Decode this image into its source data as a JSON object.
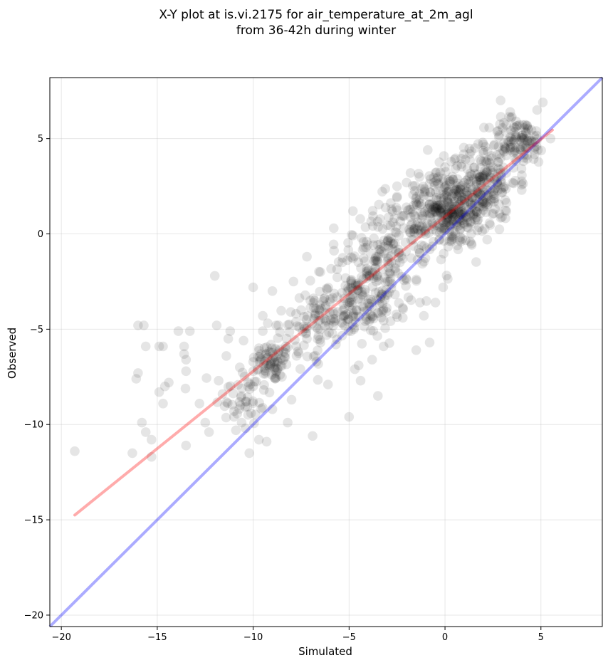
{
  "chart_data": {
    "type": "scatter",
    "title_line1": "X-Y plot at is.vi.2175 for air_temperature_at_2m_agl",
    "title_line2": "from 36-42h during winter",
    "xlabel": "Simulated",
    "ylabel": "Observed",
    "xlim": [
      -20.6,
      8.2
    ],
    "ylim": [
      -20.6,
      8.2
    ],
    "xticks": [
      -20,
      -15,
      -10,
      -5,
      0,
      5
    ],
    "yticks": [
      -20,
      -15,
      -10,
      -5,
      0,
      5
    ],
    "xtick_labels": [
      "−20",
      "−15",
      "−10",
      "−5",
      "0",
      "5"
    ],
    "ytick_labels": [
      "−20",
      "−15",
      "−10",
      "−5",
      "0",
      "5"
    ],
    "grid": true,
    "point_color": "#000000",
    "point_opacity": 0.1,
    "identity_line": {
      "color": "#0000ff",
      "opacity": 0.33,
      "from": [
        -20.6,
        -20.6
      ],
      "to": [
        8.2,
        8.2
      ]
    },
    "fit_line": {
      "color": "#ff0000",
      "opacity": 0.33,
      "from": [
        -19.3,
        -14.75
      ],
      "to": [
        5.6,
        5.45
      ]
    },
    "sparse_points": [
      [
        -19.3,
        -11.4
      ],
      [
        -16.3,
        -11.5
      ],
      [
        -16.0,
        -7.3
      ],
      [
        -16.1,
        -7.6
      ],
      [
        -16.0,
        -4.8
      ],
      [
        -15.7,
        -4.8
      ],
      [
        -15.6,
        -5.9
      ],
      [
        -15.8,
        -9.9
      ],
      [
        -15.6,
        -10.4
      ],
      [
        -15.3,
        -10.8
      ],
      [
        -15.3,
        -11.7
      ],
      [
        -14.9,
        -8.3
      ],
      [
        -14.7,
        -8.9
      ],
      [
        -14.6,
        -8.0
      ],
      [
        -14.7,
        -5.9
      ],
      [
        -14.9,
        -5.9
      ],
      [
        -14.4,
        -7.8
      ],
      [
        -13.9,
        -5.1
      ],
      [
        -13.6,
        -6.3
      ],
      [
        -13.5,
        -6.6
      ],
      [
        -13.6,
        -5.9
      ],
      [
        -13.3,
        -5.1
      ],
      [
        -13.5,
        -7.2
      ],
      [
        -13.5,
        -11.1
      ],
      [
        -12.8,
        -8.9
      ],
      [
        -12.5,
        -9.9
      ],
      [
        -12.3,
        -10.4
      ],
      [
        -12.0,
        -2.2
      ],
      [
        -11.9,
        -4.8
      ],
      [
        -11.8,
        -7.7
      ],
      [
        -11.6,
        -8.4
      ],
      [
        -11.4,
        -6.4
      ],
      [
        -11.3,
        -5.5
      ],
      [
        -11.2,
        -5.1
      ],
      [
        -11.0,
        -9.3
      ],
      [
        -10.9,
        -10.3
      ],
      [
        -10.7,
        -7.0
      ],
      [
        -10.5,
        -5.6
      ],
      [
        -10.4,
        -10.2
      ],
      [
        -10.2,
        -11.5
      ],
      [
        -10.0,
        -8.0
      ],
      [
        -10.0,
        -2.8
      ],
      [
        -9.7,
        -10.8
      ],
      [
        -9.6,
        -6.3
      ],
      [
        -9.5,
        -5.1
      ],
      [
        -9.5,
        -4.3
      ],
      [
        -9.3,
        -10.9
      ],
      [
        -9.0,
        -3.0
      ],
      [
        -8.8,
        -4.8
      ],
      [
        -8.6,
        -7.4
      ],
      [
        -8.2,
        -9.9
      ],
      [
        -8.0,
        -8.7
      ],
      [
        -7.9,
        -2.5
      ],
      [
        -7.5,
        -4.0
      ],
      [
        -7.2,
        -5.5
      ],
      [
        -7.2,
        -1.2
      ],
      [
        -6.9,
        -10.6
      ],
      [
        -6.7,
        -6.7
      ],
      [
        -6.3,
        -3.4
      ],
      [
        -6.1,
        -7.9
      ],
      [
        -5.8,
        0.3
      ],
      [
        -5.0,
        -9.6
      ],
      [
        -4.8,
        1.2
      ],
      [
        -4.7,
        -7.1
      ],
      [
        -4.5,
        -6.9
      ],
      [
        -4.4,
        -7.7
      ],
      [
        -3.8,
        -6.6
      ],
      [
        -3.5,
        -8.5
      ],
      [
        -3.2,
        -5.9
      ],
      [
        -2.8,
        -1.5
      ],
      [
        -2.5,
        2.5
      ],
      [
        -2.2,
        -4.4
      ],
      [
        -1.8,
        3.2
      ],
      [
        -1.5,
        -6.1
      ],
      [
        -1.3,
        -3.6
      ],
      [
        -1.1,
        -4.3
      ],
      [
        -1.1,
        2.0
      ],
      [
        -0.8,
        -5.7
      ],
      [
        -0.9,
        4.4
      ],
      [
        -0.5,
        -3.6
      ],
      [
        -0.1,
        -2.8
      ],
      [
        0.5,
        3.9
      ],
      [
        1.3,
        -0.4
      ],
      [
        2.2,
        -0.3
      ],
      [
        2.9,
        7.0
      ],
      [
        3.2,
        1.2
      ],
      [
        3.4,
        6.4
      ],
      [
        4.0,
        2.3
      ],
      [
        4.8,
        6.5
      ],
      [
        5.1,
        6.9
      ],
      [
        5.5,
        5.0
      ],
      [
        2.0,
        4.7
      ],
      [
        -2.0,
        -2.4
      ],
      [
        -3.0,
        -3.2
      ],
      [
        -6.5,
        -2.0
      ],
      [
        -8.5,
        -7.5
      ],
      [
        -9.0,
        -9.2
      ],
      [
        -11.0,
        -9.6
      ],
      [
        -10.6,
        -9.9
      ],
      [
        0.0,
        3.5
      ]
    ],
    "clusters": [
      {
        "center": [
          -9.0,
          -6.7
        ],
        "spread": [
          0.7,
          0.7
        ],
        "count": 70
      },
      {
        "center": [
          -10.5,
          -8.5
        ],
        "spread": [
          1.0,
          1.1
        ],
        "count": 45
      },
      {
        "center": [
          -7.3,
          -5.0
        ],
        "spread": [
          1.2,
          1.4
        ],
        "count": 55
      },
      {
        "center": [
          -5.0,
          -4.2
        ],
        "spread": [
          1.4,
          1.1
        ],
        "count": 110
      },
      {
        "center": [
          -4.0,
          -2.5
        ],
        "spread": [
          1.6,
          1.5
        ],
        "count": 120
      },
      {
        "center": [
          -3.0,
          -1.0
        ],
        "spread": [
          1.5,
          1.6
        ],
        "count": 90
      },
      {
        "center": [
          -1.5,
          0.5
        ],
        "spread": [
          1.3,
          1.4
        ],
        "count": 80
      },
      {
        "center": [
          0.5,
          1.0
        ],
        "spread": [
          1.1,
          1.1
        ],
        "count": 230
      },
      {
        "center": [
          2.0,
          2.8
        ],
        "spread": [
          1.2,
          1.3
        ],
        "count": 180
      },
      {
        "center": [
          3.8,
          4.9
        ],
        "spread": [
          1.0,
          0.8
        ],
        "count": 110
      },
      {
        "center": [
          -0.5,
          2.0
        ],
        "spread": [
          1.0,
          1.0
        ],
        "count": 60
      }
    ]
  }
}
